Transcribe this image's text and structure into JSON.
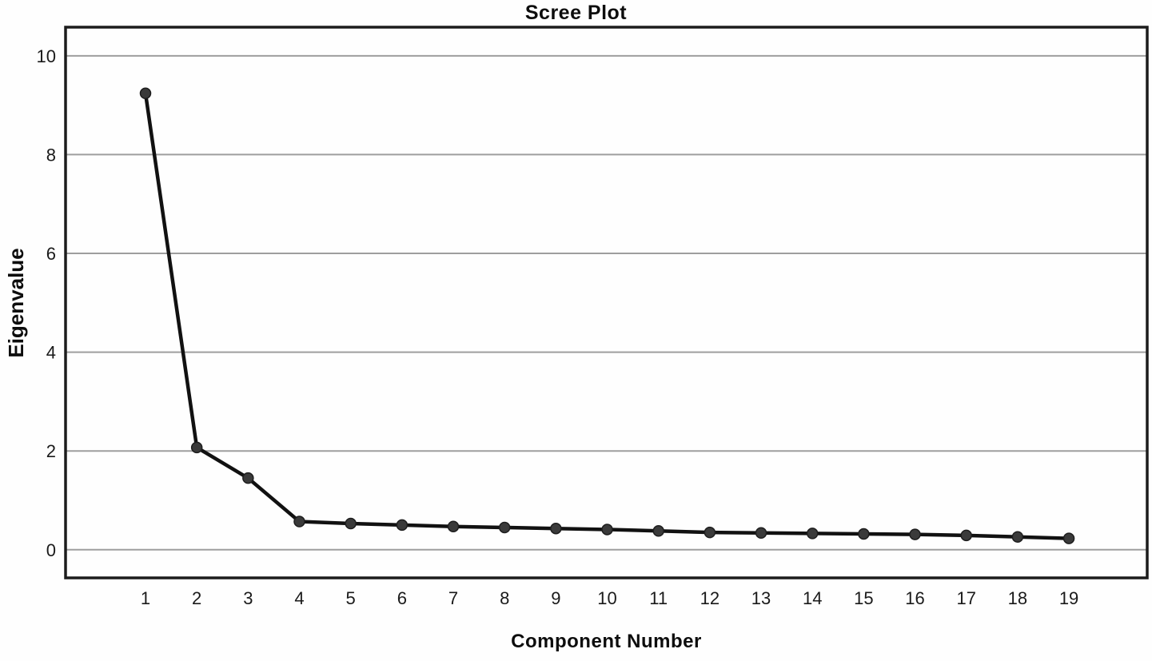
{
  "figure": {
    "background": "#ffffff"
  },
  "chart_data": {
    "type": "line",
    "title": "Scree Plot",
    "xlabel": "Component Number",
    "ylabel": "Eigenvalue",
    "categories": [
      "1",
      "2",
      "3",
      "4",
      "5",
      "6",
      "7",
      "8",
      "9",
      "10",
      "11",
      "12",
      "13",
      "14",
      "15",
      "16",
      "17",
      "18",
      "19"
    ],
    "series": [
      {
        "name": "Eigenvalue",
        "values": [
          9.24,
          2.07,
          1.45,
          0.57,
          0.53,
          0.5,
          0.47,
          0.45,
          0.43,
          0.41,
          0.38,
          0.35,
          0.34,
          0.33,
          0.32,
          0.31,
          0.29,
          0.26,
          0.23
        ]
      }
    ],
    "yticks": [
      0,
      2,
      4,
      6,
      8,
      10
    ],
    "ylim": [
      -0.57,
      10.58
    ],
    "grid": "horizontal-only",
    "legend": "none",
    "marker": "circle",
    "colors": {
      "line": "#111111",
      "marker_fill": "#3a3a3a",
      "marker_stroke": "#1d1d1d",
      "grid": "#9e9e9e",
      "frame": "#1c1c1c",
      "text": "#1a1a1a"
    }
  }
}
